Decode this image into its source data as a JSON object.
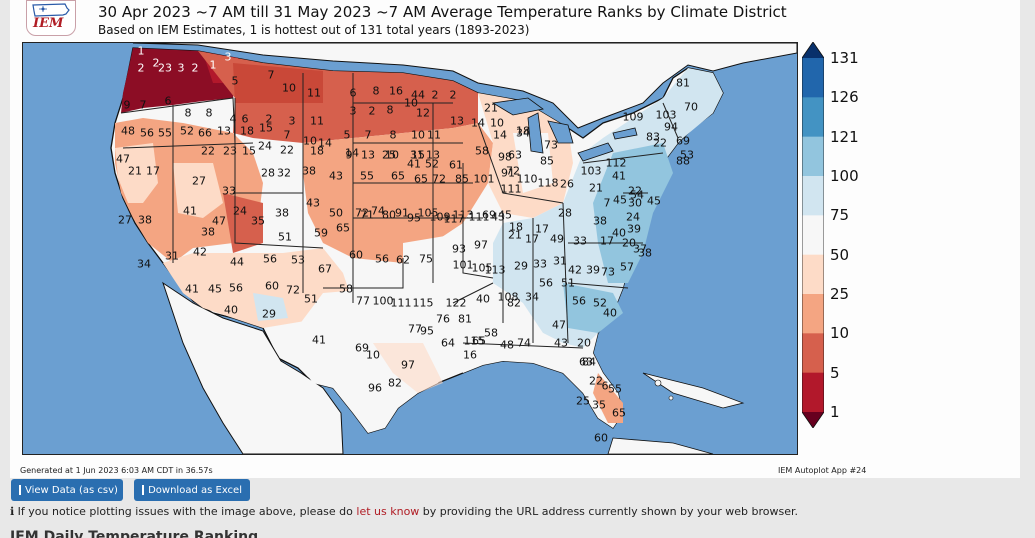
{
  "header": {
    "title": "30 Apr 2023 ~7 AM till 31 May 2023 ~7 AM Average Temperature Ranks by Climate District",
    "subtitle": "Based on IEM Estimates, 1 is hottest out of 131 total years (1893-2023)",
    "logo_text": "IEM"
  },
  "chart_data": {
    "type": "choropleth map",
    "colorbar_ticks": [
      "131",
      "126",
      "121",
      "100",
      "75",
      "50",
      "25",
      "10",
      "5",
      "1"
    ],
    "colorbar_colors": [
      "#08306b",
      "#2166ac",
      "#4393c3",
      "#92c5de",
      "#d1e5f0",
      "#f7f7f7",
      "#fddbc7",
      "#f4a582",
      "#d6604d",
      "#b2182b",
      "#67001f"
    ],
    "district_ranks": [
      "1",
      "2",
      "2",
      "23",
      "3",
      "2",
      "1",
      "3",
      "5",
      "7",
      "10",
      "11",
      "6",
      "8",
      "16",
      "44",
      "2",
      "2",
      "3",
      "2",
      "8",
      "10",
      "12",
      "9",
      "7",
      "6",
      "8",
      "8",
      "4",
      "6",
      "2",
      "3",
      "11",
      "5",
      "7",
      "8",
      "10",
      "11",
      "13",
      "14",
      "10",
      "21",
      "34",
      "48",
      "56",
      "55",
      "52",
      "66",
      "13",
      "18",
      "15",
      "7",
      "10",
      "14",
      "9",
      "13",
      "10",
      "15",
      "13",
      "14",
      "18",
      "63",
      "72",
      "73",
      "85",
      "81",
      "70",
      "103",
      "109",
      "83",
      "94",
      "69",
      "88",
      "22",
      "53",
      "47",
      "22",
      "23",
      "15",
      "24",
      "22",
      "18",
      "14",
      "25",
      "31",
      "41",
      "52",
      "61",
      "58",
      "98",
      "91",
      "103",
      "112",
      "41",
      "45",
      "54",
      "21",
      "17",
      "27",
      "33",
      "28",
      "32",
      "38",
      "43",
      "55",
      "65",
      "65",
      "72",
      "85",
      "101",
      "111",
      "110",
      "118",
      "26",
      "21",
      "7",
      "22",
      "30",
      "24",
      "45",
      "41",
      "24",
      "35",
      "38",
      "43",
      "50",
      "72",
      "74",
      "91",
      "105",
      "113",
      "69",
      "45",
      "18",
      "17",
      "28",
      "38",
      "40",
      "39",
      "27",
      "38",
      "38",
      "47",
      "51",
      "59",
      "65",
      "71",
      "80",
      "95",
      "109",
      "117",
      "111",
      "43",
      "21",
      "17",
      "49",
      "33",
      "17",
      "20",
      "37",
      "34",
      "31",
      "42",
      "44",
      "56",
      "53",
      "67",
      "60",
      "56",
      "62",
      "75",
      "93",
      "97",
      "101",
      "105",
      "113",
      "29",
      "33",
      "31",
      "42",
      "39",
      "73",
      "57",
      "38",
      "41",
      "45",
      "56",
      "60",
      "72",
      "51",
      "58",
      "77",
      "100",
      "111",
      "115",
      "122",
      "40",
      "82",
      "34",
      "56",
      "51",
      "56",
      "52",
      "40",
      "40",
      "29",
      "41",
      "69",
      "77",
      "95",
      "76",
      "81",
      "115",
      "65",
      "58",
      "48",
      "74",
      "47",
      "43",
      "20",
      "63",
      "22",
      "6",
      "25",
      "35",
      "60",
      "65",
      "55",
      "84",
      "96",
      "97",
      "64",
      "16",
      "108",
      "82",
      "10"
    ]
  },
  "footer": {
    "generated": "Generated at 1 Jun 2023 6:03 AM CDT in 36.57s",
    "app": "IEM Autoplot App #24",
    "btn_csv": "View Data (as csv)",
    "btn_excel": "Download as Excel",
    "info_icon": "ℹ",
    "info_pre": " If you notice plotting issues with the image above, please do ",
    "info_link": "let us know",
    "info_post": " by providing the URL address currently shown by your web browser.",
    "next_heading": "IEM Daily Temperature Ranking"
  }
}
